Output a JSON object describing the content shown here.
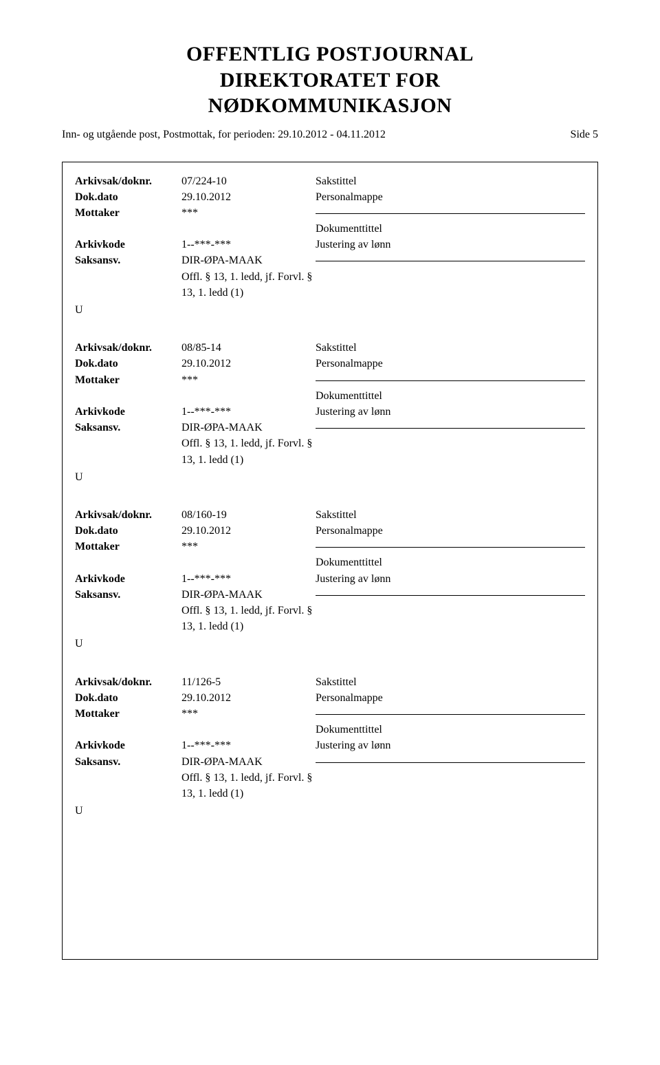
{
  "header": {
    "title_line1": "OFFENTLIG POSTJOURNAL",
    "title_line2": "DIREKTORATET FOR",
    "title_line3": "NØDKOMMUNIKASJON",
    "sub_left": "Inn- og utgående post, Postmottak, for perioden: 29.10.2012 - 04.11.2012",
    "sub_right": "Side 5"
  },
  "labels": {
    "arkivsak": "Arkivsak/doknr.",
    "dokdato": "Dok.dato",
    "mottaker": "Mottaker",
    "arkivkode": "Arkivkode",
    "saksansv": "Saksansv.",
    "sakstittel": "Sakstittel",
    "dokumenttittel": "Dokumenttittel"
  },
  "common": {
    "offl_line1": "Offl. § 13, 1. ledd, jf. Forvl. §",
    "offl_line2": "13, 1. ledd (1)"
  },
  "records": [
    {
      "arkivsak": "07/224-10",
      "dokdato": "29.10.2012",
      "mottaker": "***",
      "arkivkode": "1--***-***",
      "saksansv": "DIR-ØPA-MAAK",
      "personalmappe": "Personalmappe",
      "justering": "Justering av lønn",
      "type_letter": "U"
    },
    {
      "arkivsak": "08/85-14",
      "dokdato": "29.10.2012",
      "mottaker": "***",
      "arkivkode": "1--***-***",
      "saksansv": "DIR-ØPA-MAAK",
      "personalmappe": "Personalmappe",
      "justering": "Justering av lønn",
      "type_letter": "U"
    },
    {
      "arkivsak": "08/160-19",
      "dokdato": "29.10.2012",
      "mottaker": "***",
      "arkivkode": "1--***-***",
      "saksansv": "DIR-ØPA-MAAK",
      "personalmappe": "Personalmappe",
      "justering": "Justering av lønn",
      "type_letter": "U"
    },
    {
      "arkivsak": "11/126-5",
      "dokdato": "29.10.2012",
      "mottaker": "***",
      "arkivkode": "1--***-***",
      "saksansv": "DIR-ØPA-MAAK",
      "personalmappe": "Personalmappe",
      "justering": "Justering av lønn",
      "type_letter": "U"
    }
  ]
}
